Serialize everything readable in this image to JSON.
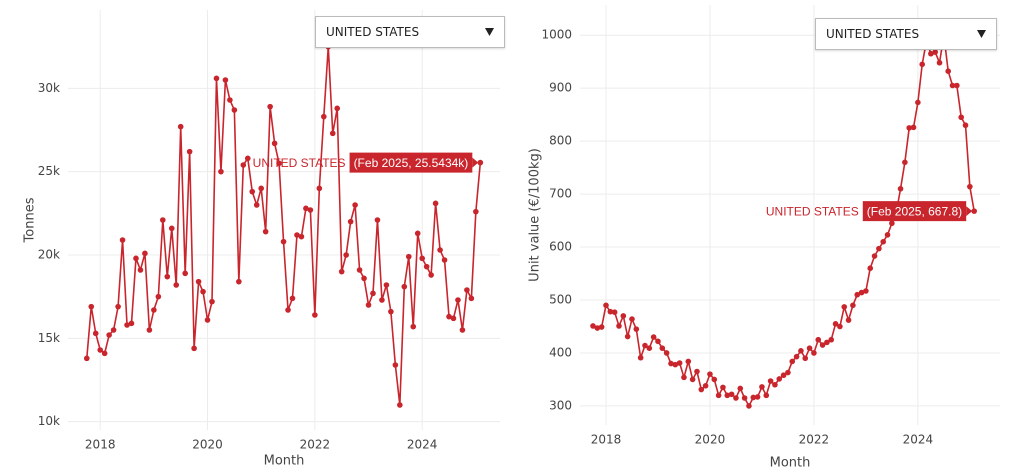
{
  "chart_data": [
    {
      "type": "line",
      "dropdown": "UNITED STATES",
      "y_label": "Tonnes",
      "x_label": "Month",
      "hover_label": "(Feb 2025, 25.5434k)",
      "x": [
        "2017-10",
        "2017-11",
        "2017-12",
        "2018-01",
        "2018-02",
        "2018-03",
        "2018-04",
        "2018-05",
        "2018-06",
        "2018-07",
        "2018-08",
        "2018-09",
        "2018-10",
        "2018-11",
        "2018-12",
        "2019-01",
        "2019-02",
        "2019-03",
        "2019-04",
        "2019-05",
        "2019-06",
        "2019-07",
        "2019-08",
        "2019-09",
        "2019-10",
        "2019-11",
        "2019-12",
        "2020-01",
        "2020-02",
        "2020-03",
        "2020-04",
        "2020-05",
        "2020-06",
        "2020-07",
        "2020-08",
        "2020-09",
        "2020-10",
        "2020-11",
        "2020-12",
        "2021-01",
        "2021-02",
        "2021-03",
        "2021-04",
        "2021-05",
        "2021-06",
        "2021-07",
        "2021-08",
        "2021-09",
        "2021-10",
        "2021-11",
        "2021-12",
        "2022-01",
        "2022-02",
        "2022-03",
        "2022-04",
        "2022-05",
        "2022-06",
        "2022-07",
        "2022-08",
        "2022-09",
        "2022-10",
        "2022-11",
        "2022-12",
        "2023-01",
        "2023-02",
        "2023-03",
        "2023-04",
        "2023-05",
        "2023-06",
        "2023-07",
        "2023-08",
        "2023-09",
        "2023-10",
        "2023-11",
        "2023-12",
        "2024-01",
        "2024-02",
        "2024-03",
        "2024-04",
        "2024-05",
        "2024-06",
        "2024-07",
        "2024-08",
        "2024-09",
        "2024-10",
        "2024-11",
        "2024-12",
        "2025-01",
        "2025-02"
      ],
      "series": [
        {
          "name": "UNITED STATES",
          "color": "#c9252c",
          "values": [
            13800,
            16900,
            15300,
            14300,
            14100,
            15200,
            15500,
            16900,
            20900,
            15800,
            15900,
            19800,
            19100,
            20100,
            15500,
            16700,
            17500,
            22100,
            18700,
            21600,
            18200,
            27700,
            18900,
            26200,
            14400,
            18400,
            17800,
            16100,
            17200,
            30600,
            25000,
            30500,
            29300,
            28700,
            18400,
            25400,
            25800,
            23800,
            23000,
            24000,
            21400,
            28900,
            26700,
            25500,
            20800,
            16700,
            17400,
            21200,
            21100,
            22800,
            22700,
            16400,
            24000,
            28300,
            32500,
            27300,
            28800,
            19000,
            20000,
            22000,
            23000,
            19100,
            18600,
            17000,
            17700,
            22100,
            17300,
            18200,
            16600,
            13400,
            11000,
            18100,
            19900,
            15700,
            21300,
            19800,
            19300,
            18800,
            23100,
            20300,
            19700,
            16300,
            16200,
            17300,
            15500,
            17900,
            17400,
            22600,
            25543.4
          ]
        }
      ],
      "xlim": [
        2017.4,
        2025.45
      ],
      "xticks": [
        2018,
        2020,
        2022,
        2024
      ],
      "ylim": [
        9500,
        34700
      ],
      "yticks": [
        {
          "value": 10000,
          "label": "10k"
        },
        {
          "value": 15000,
          "label": "15k"
        },
        {
          "value": 20000,
          "label": "20k"
        },
        {
          "value": 25000,
          "label": "25k"
        },
        {
          "value": 30000,
          "label": "30k"
        }
      ],
      "grid": true
    },
    {
      "type": "line",
      "dropdown": "UNITED STATES",
      "y_label": "Unit value (€/100kg)",
      "x_label": "Month",
      "hover_label": "(Feb 2025, 667.8)",
      "x": [
        "2017-10",
        "2017-11",
        "2017-12",
        "2018-01",
        "2018-02",
        "2018-03",
        "2018-04",
        "2018-05",
        "2018-06",
        "2018-07",
        "2018-08",
        "2018-09",
        "2018-10",
        "2018-11",
        "2018-12",
        "2019-01",
        "2019-02",
        "2019-03",
        "2019-04",
        "2019-05",
        "2019-06",
        "2019-07",
        "2019-08",
        "2019-09",
        "2019-10",
        "2019-11",
        "2019-12",
        "2020-01",
        "2020-02",
        "2020-03",
        "2020-04",
        "2020-05",
        "2020-06",
        "2020-07",
        "2020-08",
        "2020-09",
        "2020-10",
        "2020-11",
        "2020-12",
        "2021-01",
        "2021-02",
        "2021-03",
        "2021-04",
        "2021-05",
        "2021-06",
        "2021-07",
        "2021-08",
        "2021-09",
        "2021-10",
        "2021-11",
        "2021-12",
        "2022-01",
        "2022-02",
        "2022-03",
        "2022-04",
        "2022-05",
        "2022-06",
        "2022-07",
        "2022-08",
        "2022-09",
        "2022-10",
        "2022-11",
        "2022-12",
        "2023-01",
        "2023-02",
        "2023-03",
        "2023-04",
        "2023-05",
        "2023-06",
        "2023-07",
        "2023-08",
        "2023-09",
        "2023-10",
        "2023-11",
        "2023-12",
        "2024-01",
        "2024-02",
        "2024-03",
        "2024-04",
        "2024-05",
        "2024-06",
        "2024-07",
        "2024-08",
        "2024-09",
        "2024-10",
        "2024-11",
        "2024-12",
        "2025-01",
        "2025-02"
      ],
      "series": [
        {
          "name": "UNITED STATES",
          "color": "#c9252c",
          "values": [
            451,
            447,
            449,
            490,
            478,
            477,
            451,
            470,
            431,
            464,
            445,
            391,
            414,
            409,
            430,
            422,
            409,
            400,
            380,
            378,
            381,
            354,
            384,
            350,
            365,
            331,
            338,
            360,
            350,
            320,
            335,
            320,
            322,
            315,
            333,
            315,
            300,
            316,
            317,
            336,
            320,
            347,
            340,
            351,
            358,
            363,
            384,
            393,
            404,
            390,
            409,
            400,
            425,
            415,
            420,
            425,
            455,
            450,
            487,
            462,
            490,
            510,
            514,
            517,
            560,
            583,
            597,
            610,
            623,
            645,
            665,
            710,
            760,
            825,
            826,
            873,
            945,
            990,
            965,
            968,
            948,
            1000,
            932,
            905,
            905,
            845,
            830,
            714,
            667.8
          ]
        }
      ],
      "xlim": [
        2017.5,
        2025.58
      ],
      "xticks": [
        2018,
        2020,
        2022,
        2024
      ],
      "ylim": [
        264,
        1057
      ],
      "yticks": [
        300,
        400,
        500,
        600,
        700,
        800,
        900,
        1000
      ],
      "grid": true
    }
  ]
}
